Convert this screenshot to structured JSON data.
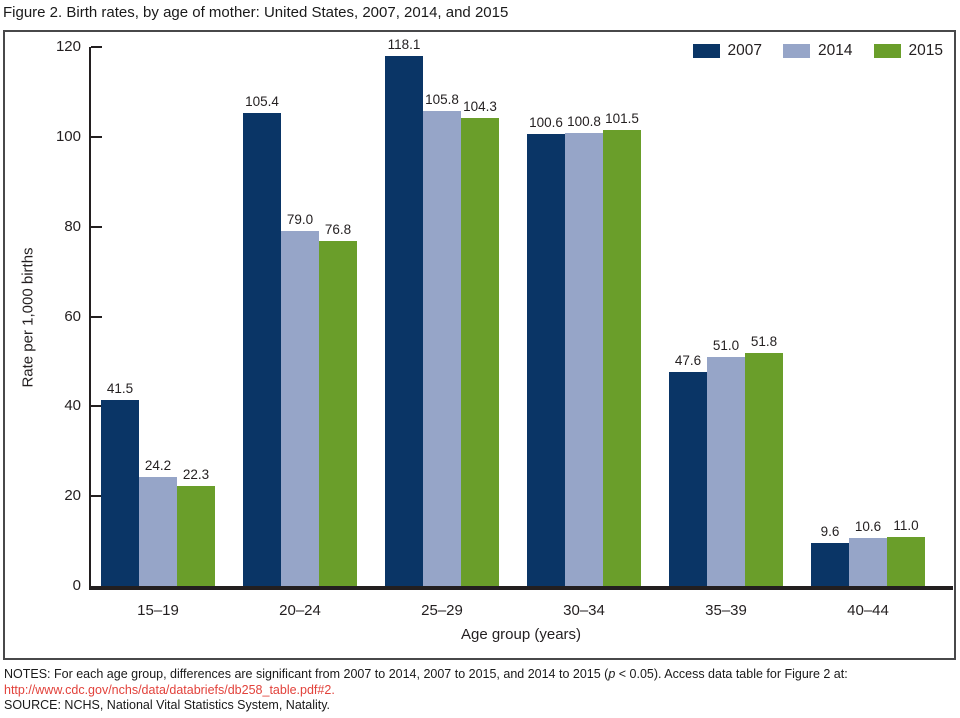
{
  "figure": {
    "title": "Figure 2. Birth rates, by age of mother: United States, 2007, 2014, and 2015"
  },
  "chart_data": {
    "type": "bar",
    "title": "Figure 2. Birth rates, by age of mother: United States, 2007, 2014, and 2015",
    "categories": [
      "15–19",
      "20–24",
      "25–29",
      "30–34",
      "35–39",
      "40–44"
    ],
    "series": [
      {
        "name": "2007",
        "color": "#0a3566",
        "values": [
          41.5,
          105.4,
          118.1,
          100.6,
          47.6,
          9.6
        ]
      },
      {
        "name": "2014",
        "color": "#96a5c8",
        "values": [
          24.2,
          79.0,
          105.8,
          100.8,
          51.0,
          10.6
        ]
      },
      {
        "name": "2015",
        "color": "#6a9e2a",
        "values": [
          22.3,
          76.8,
          104.3,
          101.5,
          51.8,
          11.0
        ]
      }
    ],
    "value_label_decimals": 1,
    "xlabel": "Age group (years)",
    "ylabel": "Rate per 1,000 births",
    "ylim": [
      0,
      120
    ],
    "yticks": [
      0,
      20,
      40,
      60,
      80,
      100,
      120
    ],
    "grid": false,
    "legend_position": "top-right",
    "value_labels": true
  },
  "notes": {
    "line1_prefix": "NOTES: For each age group, differences are significant from 2007 to 2014, 2007 to 2015, and 2014 to 2015 (",
    "p_italic": "p",
    "line1_suffix": " < 0.05). Access data table for Figure 2 at:",
    "link_text": "http://www.cdc.gov/nchs/data/databriefs/db258_table.pdf#2",
    "link_period": ".",
    "source_line": "SOURCE: NCHS, National Vital Statistics System, Natality."
  },
  "colors": {
    "axis": "#231f20",
    "box_border": "#48484a",
    "link_red": "#e2423b",
    "text": "#231f20"
  }
}
